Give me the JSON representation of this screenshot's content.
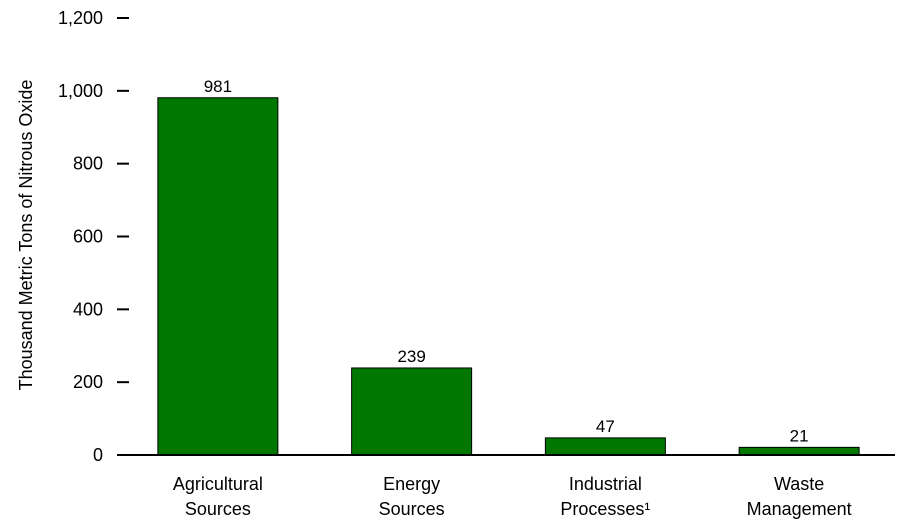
{
  "chart_data": {
    "type": "bar",
    "title": "",
    "xlabel": "",
    "ylabel": "Thousand Metric Tons of Nitrous Oxide",
    "ylim": [
      0,
      1200
    ],
    "yticks": [
      0,
      200,
      400,
      600,
      800,
      1000,
      1200
    ],
    "ytick_labels": [
      "0",
      "200",
      "400",
      "600",
      "800",
      "1,000",
      "1,200"
    ],
    "categories": [
      [
        "Agricultural",
        "Sources"
      ],
      [
        "Energy",
        "Sources"
      ],
      [
        "Industrial",
        "Processes¹"
      ],
      [
        "Waste",
        "Management"
      ]
    ],
    "values": [
      981,
      239,
      47,
      21
    ],
    "data_labels": [
      "981",
      "239",
      "47",
      "21"
    ],
    "bar_color": "#007700",
    "grid": false,
    "legend": "none"
  }
}
